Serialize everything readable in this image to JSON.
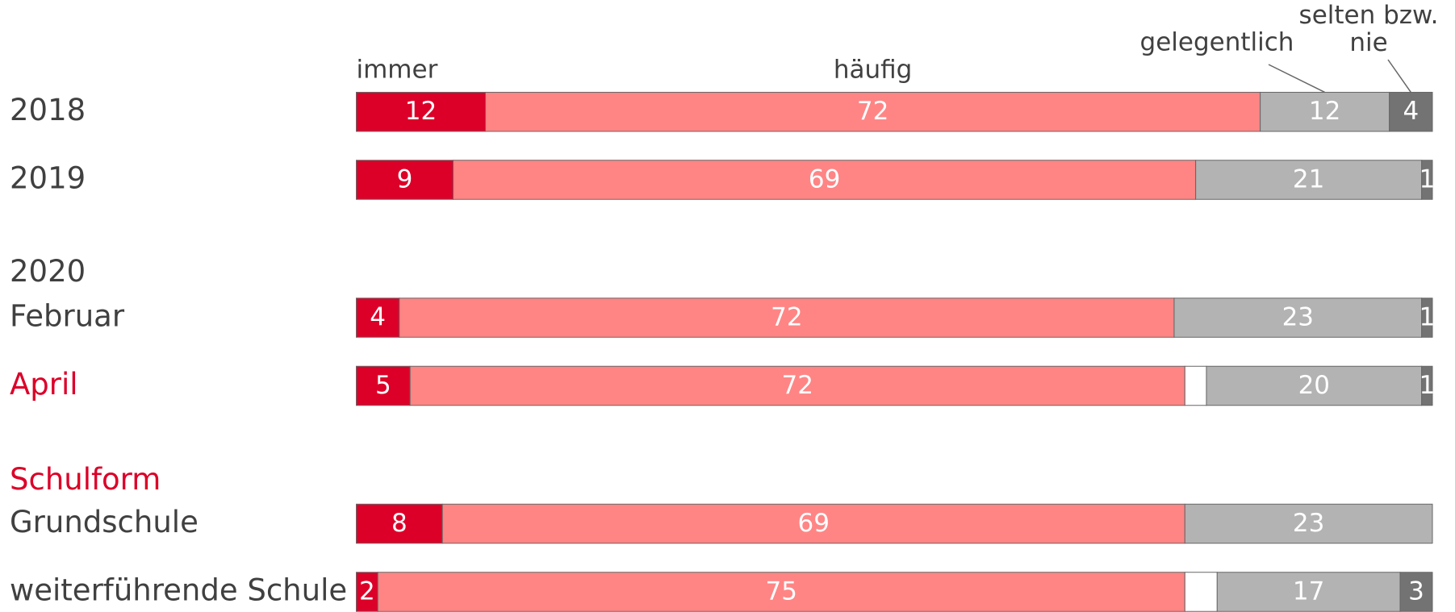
{
  "chart_data": {
    "type": "stacked-bar-horizontal",
    "categories": [
      "2018",
      "2019",
      "2020",
      "Februar",
      "April",
      "Schulform",
      "Grundschule",
      "weiterführende Schule"
    ],
    "label_colors": [
      "#404040",
      "#404040",
      "#404040",
      "#404040",
      "#dc0028",
      "#dc0028",
      "#404040",
      "#404040"
    ],
    "xlim": [
      0,
      100
    ],
    "series": [
      {
        "name": "immer",
        "color": "#dc0028",
        "values": [
          12,
          9,
          null,
          4,
          5,
          null,
          8,
          2
        ]
      },
      {
        "name": "häufig",
        "color": "#ff8585",
        "values": [
          72,
          69,
          null,
          72,
          72,
          null,
          69,
          75
        ]
      },
      {
        "color": "#ffffff",
        "values": [
          null,
          null,
          null,
          null,
          2,
          null,
          null,
          3
        ]
      },
      {
        "name": "gelegentlich",
        "color": "#b3b3b3",
        "values": [
          12,
          21,
          null,
          23,
          20,
          null,
          23,
          17
        ]
      },
      {
        "name": "selten bzw. nie",
        "color": "#737373",
        "values": [
          4,
          1,
          null,
          1,
          1,
          null,
          null,
          3
        ]
      }
    ]
  }
}
